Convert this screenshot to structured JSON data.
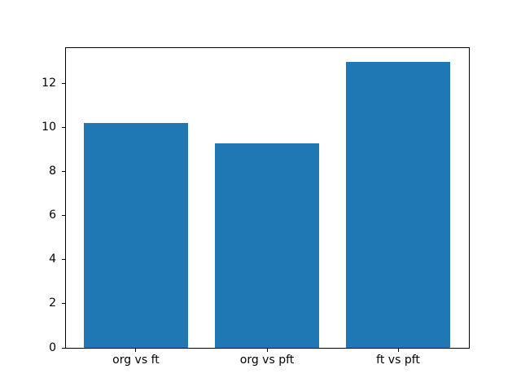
{
  "figure": {
    "background_color": "#ffffff",
    "bar_color": "#1f77b4",
    "spine_color": "#000000",
    "text_color": "#000000"
  },
  "chart_data": {
    "type": "bar",
    "categories": [
      "org vs ft",
      "org vs pft",
      "ft vs pft"
    ],
    "values": [
      10.2,
      9.3,
      13.0
    ],
    "title": "",
    "xlabel": "",
    "ylabel": "",
    "ylim": [
      0,
      13.65
    ],
    "yticks": [
      0,
      2,
      4,
      6,
      8,
      10,
      12
    ],
    "bar_width_fraction": 0.8,
    "grid": false,
    "legend": false
  }
}
